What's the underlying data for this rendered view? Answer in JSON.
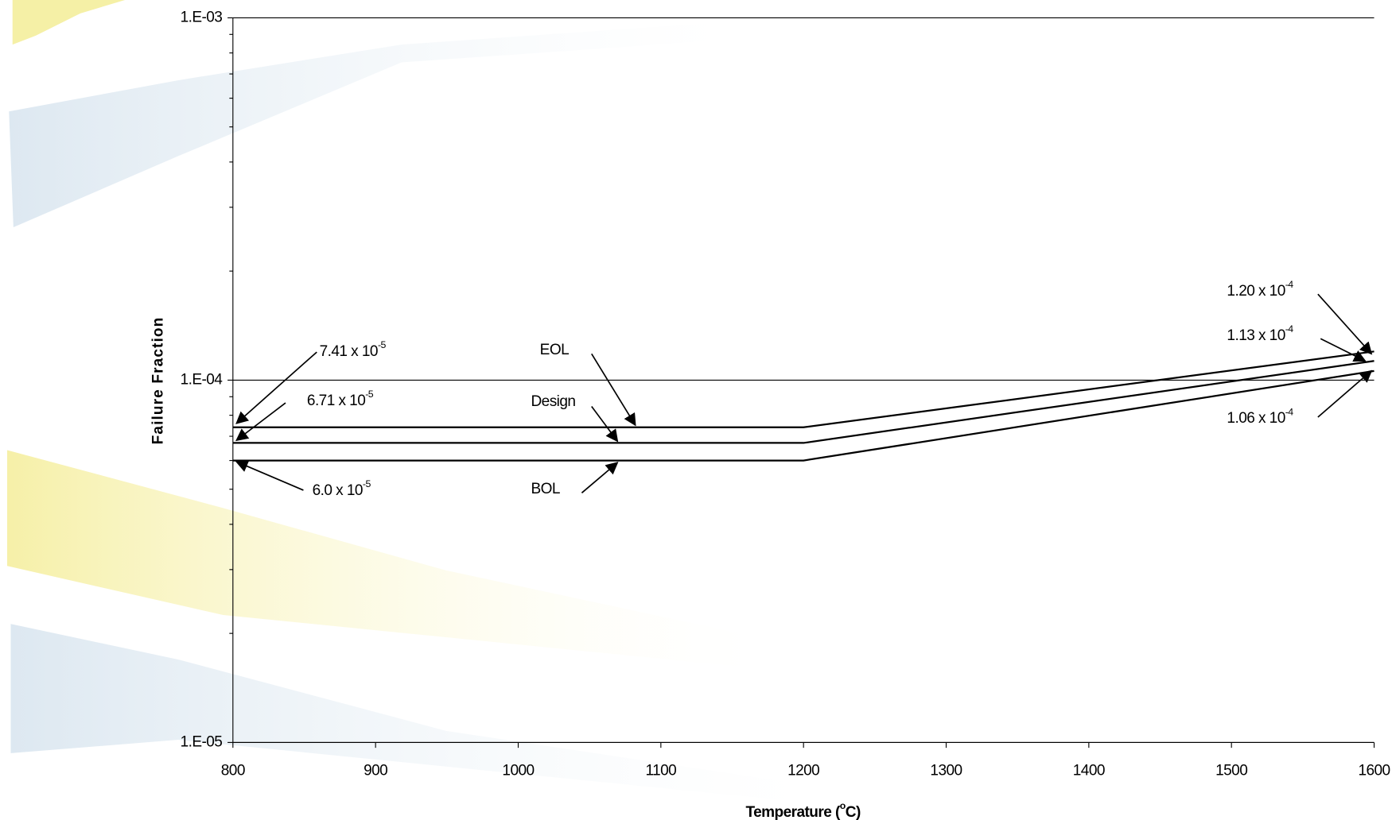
{
  "chart_data": {
    "type": "line",
    "x_label": {
      "text": "Temperature (",
      "superscript": "o",
      "suffix": "C)"
    },
    "y_label": "Failure Fraction",
    "log_y": true,
    "grid": true,
    "xlim": [
      800,
      1600
    ],
    "xticks": [
      800,
      900,
      1000,
      1100,
      1200,
      1300,
      1400,
      1500,
      1600
    ],
    "ylim": [
      1e-05,
      0.001
    ],
    "yticks": [
      {
        "value": 0.001,
        "label": "1.E-03"
      },
      {
        "value": 0.0001,
        "label": "1.E-04"
      },
      {
        "value": 1e-05,
        "label": "1.E-05"
      }
    ],
    "yminorticks": [
      2e-05,
      3e-05,
      4e-05,
      5e-05,
      6e-05,
      7e-05,
      8e-05,
      9e-05,
      0.0002,
      0.0003,
      0.0004,
      0.0005,
      0.0006,
      0.0007,
      0.0008,
      0.0009
    ],
    "series": [
      {
        "name": "EOL",
        "color": "#000000",
        "x": [
          800,
          1200,
          1600
        ],
        "values": [
          7.41e-05,
          7.41e-05,
          0.00012
        ]
      },
      {
        "name": "Design",
        "color": "#000000",
        "x": [
          800,
          1200,
          1600
        ],
        "values": [
          6.71e-05,
          6.71e-05,
          0.000113
        ]
      },
      {
        "name": "BOL",
        "color": "#000000",
        "x": [
          800,
          1200,
          1600
        ],
        "values": [
          6e-05,
          6e-05,
          0.000106
        ]
      }
    ],
    "annotations": [
      {
        "text": "7.41 x 10",
        "exponent": "-5"
      },
      {
        "text": "6.71 x 10",
        "exponent": "-5"
      },
      {
        "text": "6.0 x 10",
        "exponent": "-5"
      },
      {
        "text": "1.20 x 10",
        "exponent": "-4"
      },
      {
        "text": "1.13 x 10",
        "exponent": "-4"
      },
      {
        "text": "1.06 x 10",
        "exponent": "-4"
      }
    ]
  }
}
